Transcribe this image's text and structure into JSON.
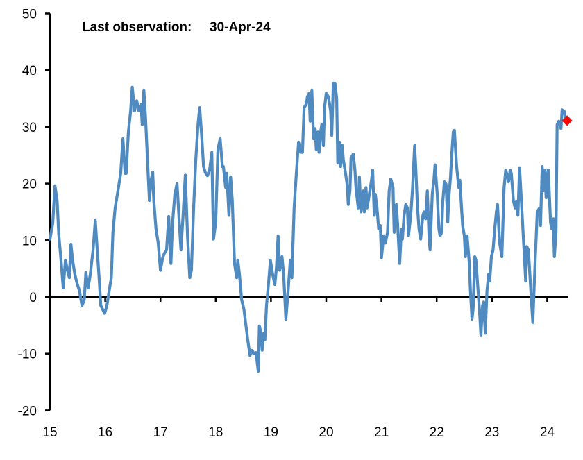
{
  "chart_data": {
    "type": "line",
    "title": "",
    "xlabel": "",
    "ylabel": "",
    "xlim": [
      15,
      24.36
    ],
    "ylim": [
      -20,
      50
    ],
    "grid": false,
    "legend": "none",
    "annotation": {
      "label": "Last observation:",
      "value": "30-Apr-24"
    },
    "y_ticks": [
      -20,
      -10,
      0,
      10,
      20,
      30,
      40,
      50
    ],
    "x_ticks": [
      15,
      16,
      17,
      18,
      19,
      20,
      21,
      22,
      23,
      24
    ],
    "y_tick_labels": [
      "-20",
      "-10",
      "0",
      "10",
      "20",
      "30",
      "40",
      "50"
    ],
    "x_tick_labels": [
      "15",
      "16",
      "17",
      "18",
      "19",
      "20",
      "21",
      "22",
      "23",
      "24"
    ],
    "colors": {
      "line": "#4F8BC0",
      "last_marker": "#FF0000"
    },
    "last_point": {
      "x": 24.36,
      "y": 31.1
    },
    "series": [
      {
        "x": [
          15.0,
          15.05,
          15.09,
          15.13,
          15.16,
          15.2,
          15.24,
          15.28,
          15.31,
          15.35,
          15.38,
          15.41,
          15.45,
          15.49,
          15.53,
          15.58,
          15.62,
          15.65,
          15.69,
          15.73,
          15.78,
          15.82,
          15.85,
          15.89,
          15.92,
          15.95,
          15.99,
          16.03,
          16.07,
          16.11,
          16.14,
          16.18,
          16.23,
          16.28,
          16.32,
          16.36,
          16.38,
          16.42,
          16.46,
          16.49,
          16.53,
          16.57,
          16.61,
          16.65,
          16.67,
          16.7,
          16.73,
          16.77,
          16.8,
          16.83,
          16.86,
          16.88,
          16.92,
          16.96,
          17.0,
          17.04,
          17.07,
          17.11,
          17.15,
          17.19,
          17.22,
          17.26,
          17.3,
          17.34,
          17.37,
          17.41,
          17.45,
          17.49,
          17.53,
          17.56,
          17.6,
          17.64,
          17.68,
          17.71,
          17.75,
          17.78,
          17.81,
          17.85,
          17.89,
          17.93,
          17.96,
          18.0,
          18.04,
          18.08,
          18.12,
          18.14,
          18.18,
          18.2,
          18.24,
          18.27,
          18.3,
          18.34,
          18.38,
          18.4,
          18.43,
          18.47,
          18.51,
          18.54,
          18.58,
          18.62,
          18.66,
          18.69,
          18.73,
          18.77,
          18.79,
          18.82,
          18.84,
          18.87,
          18.89,
          18.92,
          18.96,
          18.99,
          19.03,
          19.07,
          19.1,
          19.13,
          19.16,
          19.2,
          19.23,
          19.27,
          19.31,
          19.35,
          19.38,
          19.42,
          19.46,
          19.5,
          19.54,
          19.57,
          19.6,
          19.64,
          19.66,
          19.69,
          19.71,
          19.74,
          19.77,
          19.8,
          19.82,
          19.85,
          19.87,
          19.9,
          19.92,
          19.95,
          19.97,
          20.0,
          20.04,
          20.08,
          20.1,
          20.13,
          20.16,
          20.19,
          20.21,
          20.24,
          20.26,
          20.29,
          20.31,
          20.35,
          20.38,
          20.4,
          20.43,
          20.45,
          20.49,
          20.52,
          20.54,
          20.58,
          20.6,
          20.63,
          20.67,
          20.69,
          20.72,
          20.74,
          20.78,
          20.82,
          20.84,
          20.87,
          20.89,
          20.92,
          20.95,
          20.98,
          21.0,
          21.04,
          21.07,
          21.11,
          21.14,
          21.17,
          21.21,
          21.23,
          21.27,
          21.29,
          21.33,
          21.36,
          21.38,
          21.41,
          21.44,
          21.47,
          21.49,
          21.53,
          21.56,
          21.6,
          21.62,
          21.65,
          21.68,
          21.71,
          21.75,
          21.77,
          21.8,
          21.83,
          21.86,
          21.88,
          21.92,
          21.95,
          21.97,
          22.01,
          22.04,
          22.06,
          22.09,
          22.11,
          22.14,
          22.17,
          22.2,
          22.22,
          22.25,
          22.27,
          22.3,
          22.32,
          22.36,
          22.4,
          22.42,
          22.45,
          22.47,
          22.5,
          22.52,
          22.55,
          22.59,
          22.61,
          22.64,
          22.66,
          22.69,
          22.71,
          22.75,
          22.78,
          22.8,
          22.83,
          22.85,
          22.88,
          22.91,
          22.94,
          22.96,
          22.99,
          23.02,
          23.05,
          23.08,
          23.1,
          23.14,
          23.18,
          23.22,
          23.25,
          23.28,
          23.3,
          23.33,
          23.35,
          23.39,
          23.42,
          23.44,
          23.47,
          23.5,
          23.53,
          23.57,
          23.61,
          23.63,
          23.66,
          23.69,
          23.72,
          23.74,
          23.78,
          23.82,
          23.86,
          23.88,
          23.91,
          23.93,
          23.96,
          23.98,
          24.02,
          24.06,
          24.08,
          24.11,
          24.13,
          24.16,
          24.18,
          24.21,
          24.25,
          24.27,
          24.31,
          24.33,
          24.36
        ],
        "y": [
          10.2,
          13,
          19.6,
          17,
          11,
          6.5,
          1.6,
          6.5,
          5,
          3.4,
          9.3,
          6.5,
          4,
          2.4,
          1.2,
          -1.5,
          -0.5,
          4.3,
          1.6,
          4,
          8.3,
          13.5,
          9,
          3.4,
          -1.5,
          -2.1,
          -2.9,
          -1.5,
          1,
          3.4,
          11.4,
          15.7,
          18.7,
          21.8,
          27.9,
          21.8,
          21.8,
          29.1,
          32.8,
          37,
          32.8,
          34.6,
          32.8,
          34,
          30.4,
          36.5,
          31.6,
          23,
          17,
          20.6,
          22,
          17,
          12,
          9.5,
          4.7,
          6.9,
          7.7,
          8.3,
          14.2,
          5.9,
          13.2,
          18.1,
          20,
          13.2,
          8.3,
          14.4,
          21.5,
          10.8,
          3.4,
          4.7,
          15.7,
          24.2,
          30.4,
          33.4,
          27.9,
          23,
          22,
          21.4,
          22.4,
          25.5,
          10.2,
          13.2,
          26,
          27.9,
          23,
          23,
          19.3,
          21.8,
          14.4,
          21.2,
          17,
          5.9,
          3.4,
          6.5,
          4,
          -0.5,
          -2.1,
          -4.5,
          -7.6,
          -10.3,
          -9.4,
          -10,
          -9.8,
          -13.1,
          -5.1,
          -6.4,
          -9.4,
          -6.4,
          -7.6,
          -1.5,
          2.8,
          6.5,
          4,
          2.2,
          5.3,
          10.8,
          4.7,
          7.1,
          4,
          -3.9,
          1,
          6.5,
          3.4,
          15.7,
          21.8,
          27.3,
          25.5,
          25.5,
          33.4,
          34,
          35.3,
          35.9,
          31,
          36.5,
          27.9,
          29.7,
          26,
          29.1,
          25.5,
          29.1,
          30.4,
          26.7,
          33.4,
          35.9,
          35.3,
          32.8,
          28.5,
          37.7,
          37.7,
          35,
          23.6,
          27.3,
          23,
          26.7,
          24.2,
          21.8,
          19.8,
          16.3,
          18.7,
          24.5,
          25.2,
          22.4,
          19.1,
          15.7,
          21.2,
          15,
          18.7,
          15,
          19.3,
          15.7,
          18.1,
          20.6,
          22.4,
          14.4,
          18.1,
          15.7,
          12,
          12.6,
          6.9,
          10.8,
          9.5,
          11.4,
          18.7,
          20.8,
          19.3,
          11.4,
          16.3,
          13.2,
          5.9,
          12,
          10.2,
          14.4,
          16.3,
          15.7,
          10.8,
          14.4,
          18.7,
          26.7,
          23,
          16.3,
          12,
          10.2,
          14.4,
          15,
          13.8,
          18.7,
          10.8,
          8.3,
          18.1,
          20.6,
          23.3,
          18.1,
          12,
          10.8,
          11.4,
          16.9,
          20.3,
          19.9,
          13.2,
          17.5,
          21.2,
          24.8,
          29.1,
          29.4,
          23,
          19.3,
          20.6,
          15.7,
          12.6,
          10.8,
          7.1,
          10.8,
          5.9,
          1,
          -3.9,
          -2.1,
          7.1,
          6.5,
          1,
          -3.3,
          -6.7,
          -1.5,
          -0.9,
          -6.4,
          1,
          4,
          2.8,
          7.1,
          8.3,
          12,
          15,
          16.3,
          9.5,
          7.1,
          19.3,
          22.4,
          21.2,
          20.3,
          22.4,
          21.8,
          16.9,
          15.7,
          16.9,
          14.4,
          22.8,
          17.5,
          10.2,
          2.8,
          8.9,
          8.3,
          3.4,
          -1.5,
          -4.5,
          5.9,
          15,
          15.7,
          12.6,
          23,
          18.7,
          22.4,
          17.5,
          22.4,
          13.2,
          12,
          13.8,
          7.1,
          11.4,
          30.4,
          31,
          29.7,
          33,
          32.7,
          31.5,
          31.1
        ]
      }
    ]
  }
}
